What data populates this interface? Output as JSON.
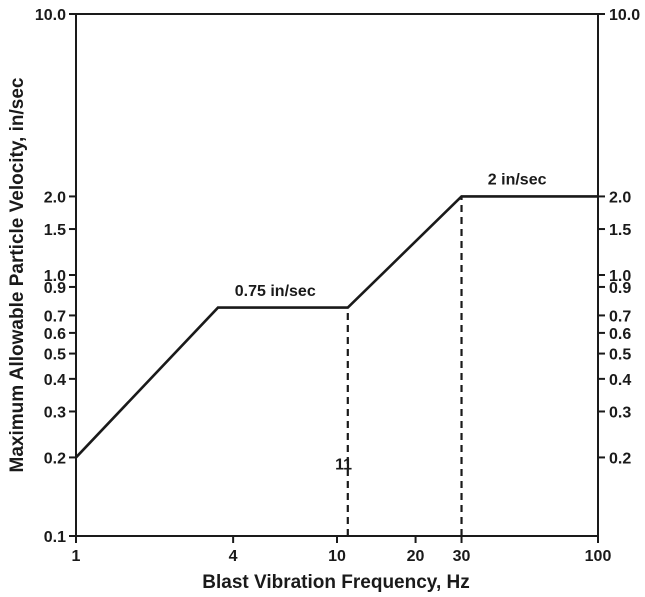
{
  "chart_data": {
    "type": "line",
    "title": "",
    "xlabel": "Blast Vibration Frequency, Hz",
    "ylabel": "Maximum Allowable Particle Velocity, in/sec",
    "xscale": "log",
    "yscale": "log",
    "xlim": [
      1,
      100
    ],
    "ylim": [
      0.1,
      10.0
    ],
    "grid": false,
    "x_ticks": [
      1,
      4,
      10,
      20,
      30,
      100
    ],
    "x_tick_labels": [
      "1",
      "4",
      "10",
      "20",
      "30",
      "100"
    ],
    "y_ticks": [
      0.1,
      0.2,
      0.3,
      0.4,
      0.5,
      0.6,
      0.7,
      0.9,
      1.0,
      1.5,
      2.0,
      10.0
    ],
    "y_tick_labels_left": [
      "0.1",
      "0.2",
      "0.3",
      "0.4",
      "0.5",
      "0.6",
      "0.7",
      "0.9",
      "1.0",
      "1.5",
      "2.0",
      "10.0"
    ],
    "y_tick_labels_right": [
      "",
      "0.2",
      "0.3",
      "0.4",
      "0.5",
      "0.6",
      "0.7",
      "0.9",
      "1.0",
      "1.5",
      "2.0",
      "10.0"
    ],
    "series": [
      {
        "x": [
          1,
          3.5,
          11,
          30,
          100
        ],
        "y": [
          0.2,
          0.75,
          0.75,
          2.0,
          2.0
        ]
      }
    ],
    "reference_lines": [
      {
        "x": 11,
        "y_from": 0.1,
        "y_to": 0.75,
        "style": "dashed"
      },
      {
        "x": 30,
        "y_from": 0.1,
        "y_to": 2.0,
        "style": "dashed"
      }
    ],
    "annotations": [
      {
        "text": "0.75 in/sec",
        "x": 5.8,
        "y": 0.83
      },
      {
        "text": "2 in/sec",
        "x": 49,
        "y": 2.22
      },
      {
        "text": "11",
        "x": 10.6,
        "y": 0.18
      }
    ],
    "line_color": "#1a1a1a"
  }
}
